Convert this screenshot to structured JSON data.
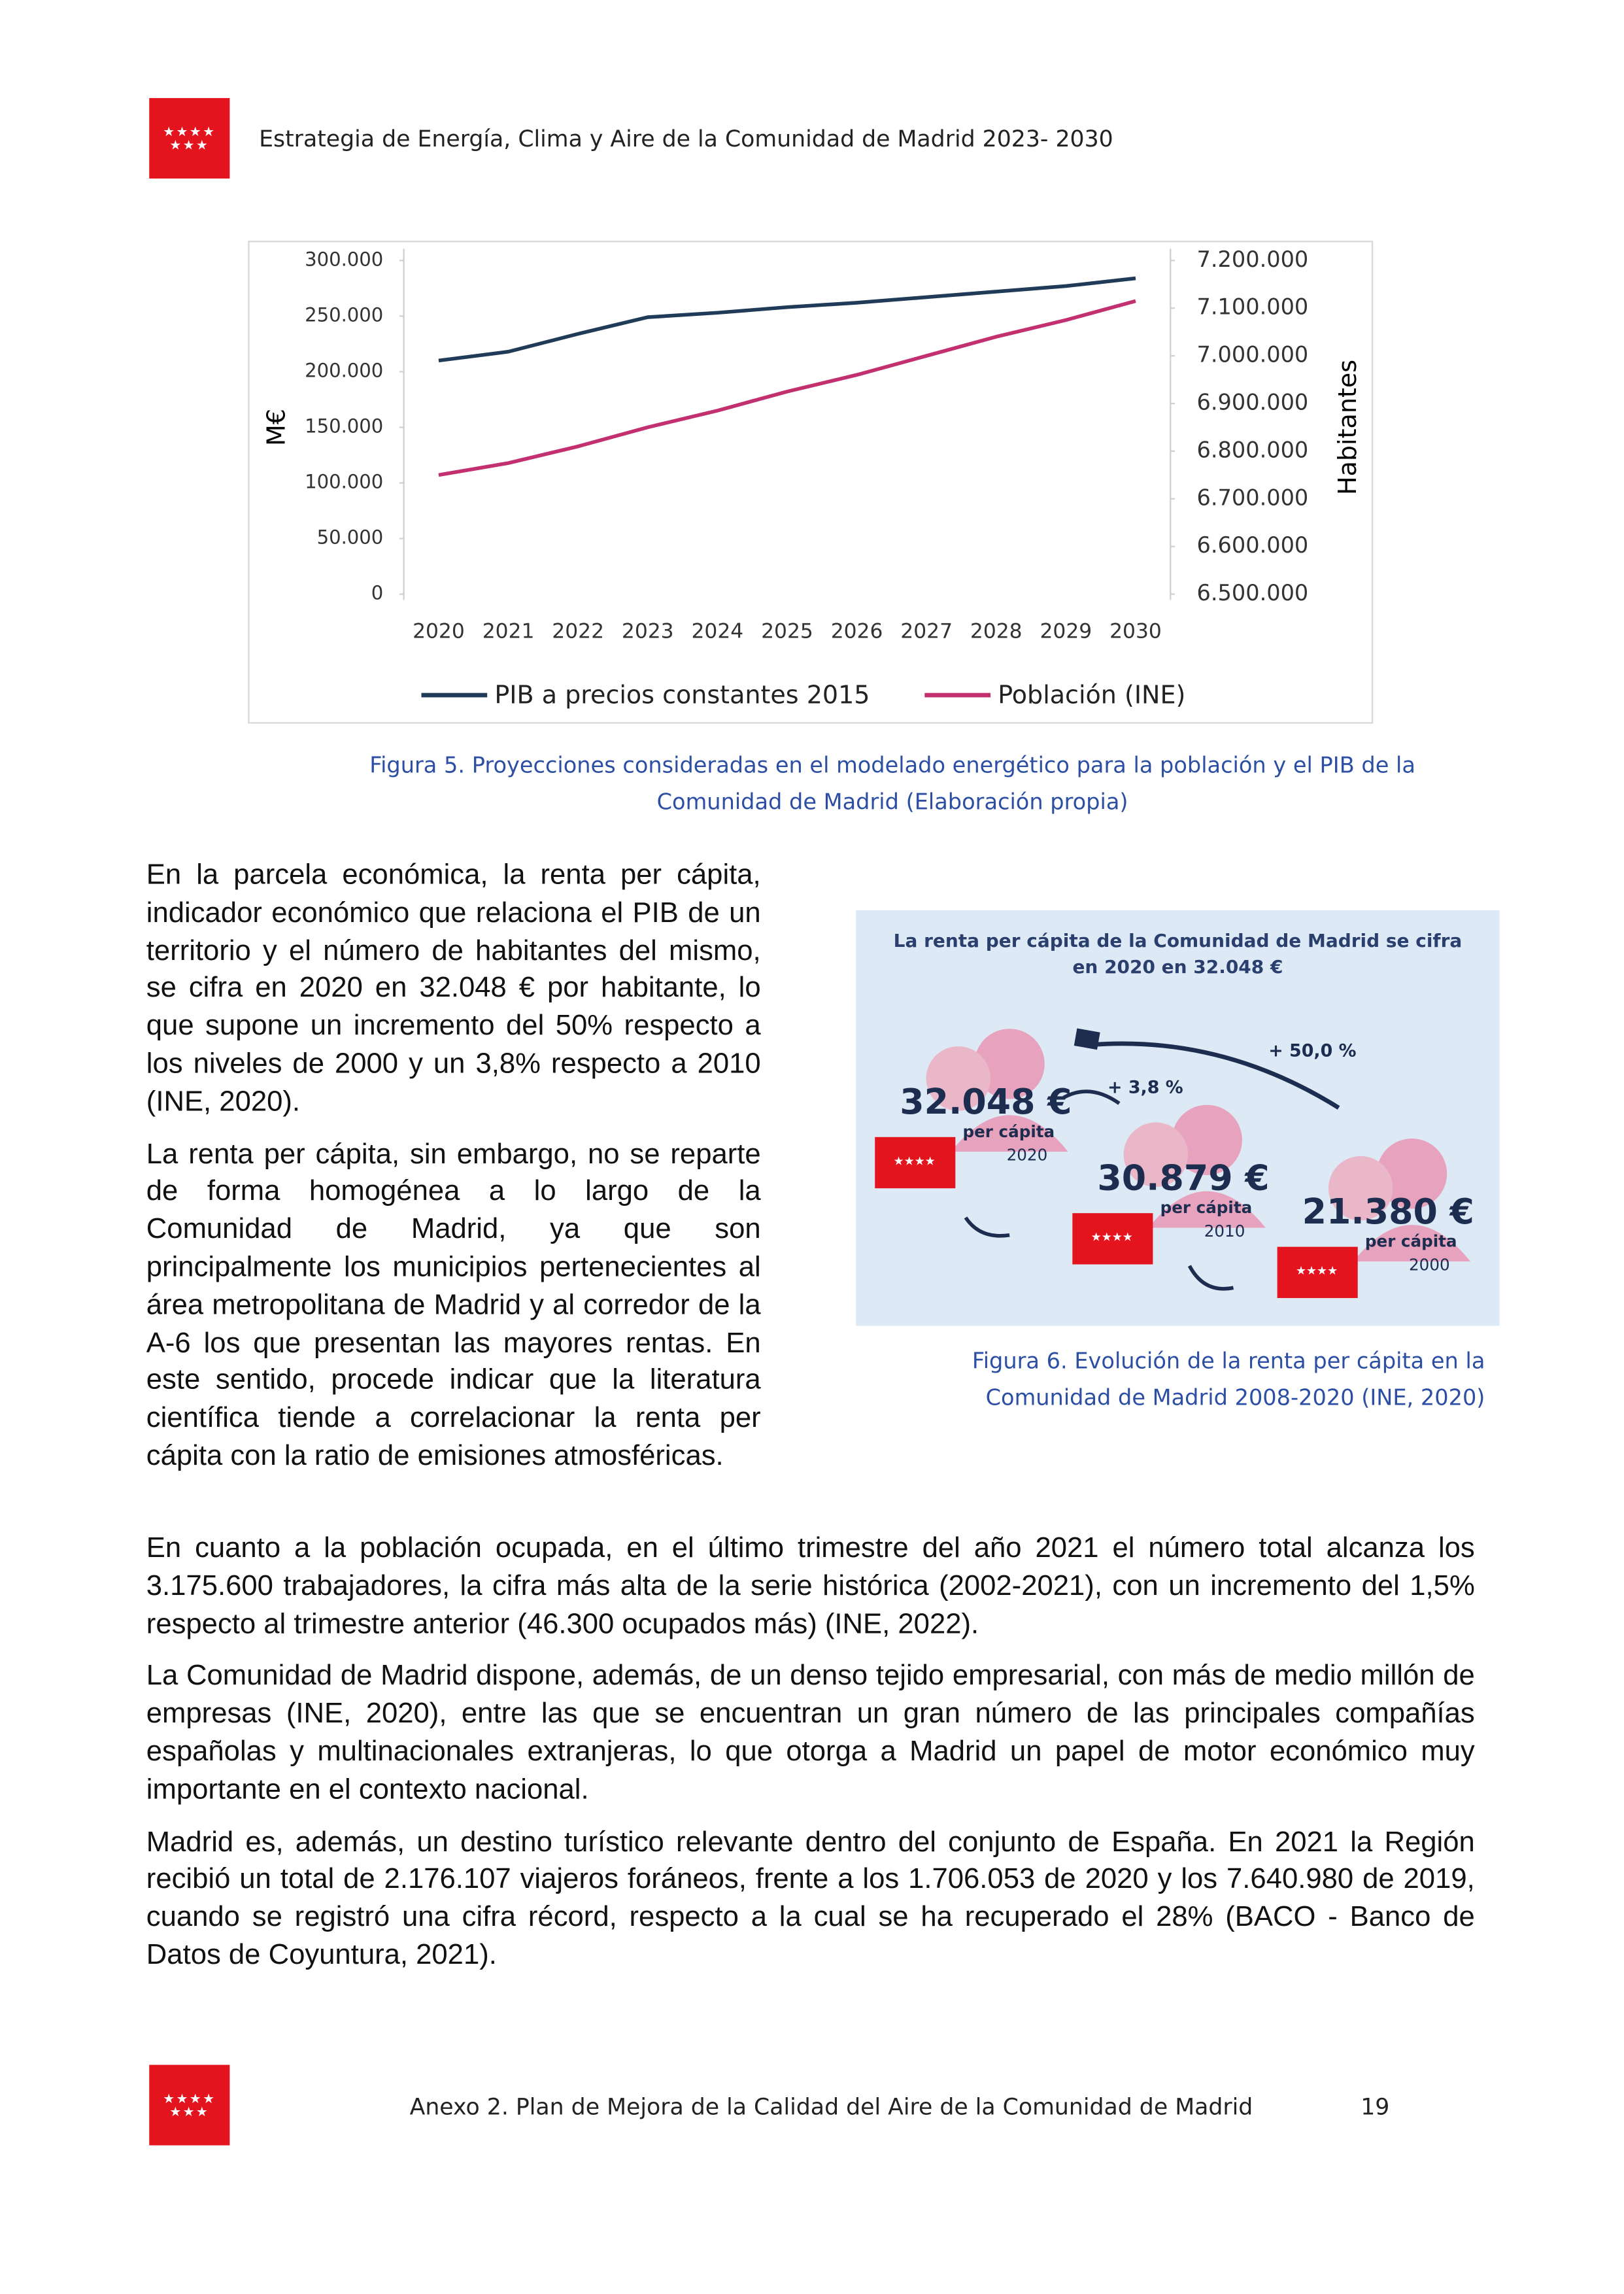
{
  "header": {
    "title": "Estrategia de Energía, Clima y Aire de la Comunidad de Madrid 2023- 2030"
  },
  "chart_data": {
    "type": "line",
    "categories": [
      "2020",
      "2021",
      "2022",
      "2023",
      "2024",
      "2025",
      "2026",
      "2027",
      "2028",
      "2029",
      "2030"
    ],
    "y_label": "M€",
    "y2_label": "Habitantes",
    "series": [
      {
        "name": "PIB a precios constantes 2015",
        "color": "#1f3b57",
        "values": [
          210000,
          218000,
          234000,
          249000,
          253000,
          258000,
          262000,
          267000,
          272000,
          277000,
          284000
        ]
      },
      {
        "name": "Población (INE)",
        "color": "#c2306f",
        "axis": "y2",
        "values": [
          6750000,
          6775000,
          6810000,
          6850000,
          6885000,
          6925000,
          6960000,
          7000000,
          7040000,
          7075000,
          7115000
        ]
      }
    ],
    "ylim": [
      0,
      300000
    ],
    "yticks": [
      0,
      {
        "value": 50000,
        "label": "50.000"
      },
      {
        "value": 100000,
        "label": "100.000"
      },
      {
        "value": 150000,
        "label": "150.000"
      },
      {
        "value": 200000,
        "label": "200.000"
      },
      {
        "value": 250000,
        "label": "250.000"
      },
      {
        "value": 300000,
        "label": "300.000"
      }
    ],
    "y2lim": [
      6500000,
      7200000
    ],
    "y2ticks": [
      {
        "value": 6500000,
        "label": "6.500.000"
      },
      {
        "value": 6600000,
        "label": "6.600.000"
      },
      {
        "value": 6700000,
        "label": "6.700.000"
      },
      {
        "value": 6800000,
        "label": "6.800.000"
      },
      {
        "value": 6900000,
        "label": "6.900.000"
      },
      {
        "value": 7000000,
        "label": "7.000.000"
      },
      {
        "value": 7100000,
        "label": "7.100.000"
      },
      {
        "value": 7200000,
        "label": "7.200.000"
      }
    ],
    "legend": "bottom",
    "grid": false
  },
  "figure5_caption": "Figura 5. Proyecciones consideradas en el modelado energético para la población y el PIB de la Comunidad de Madrid (Elaboración propia)",
  "left_paragraphs": [
    "En la parcela económica, la renta per cápita, indicador económico que relaciona el PIB de un territorio y el número de habitantes del mismo, se cifra en 2020 en 32.048 € por habitante, lo que supone un incremento del 50% respecto a los niveles de 2000 y un 3,8% respecto a 2010 (INE, 2020).",
    "La renta per cápita, sin embargo, no se reparte de forma homogénea a lo largo de la Comunidad de Madrid, ya que son principalmente los municipios pertenecientes al área metropolitana de Madrid y al corredor de la A-6 los que presentan las mayores rentas. En este sentido, procede indicar que la literatura científica tiende a correlacionar la renta per cápita con la ratio de emisiones atmosféricas."
  ],
  "infographic": {
    "title": "La renta per cápita de la Comunidad de Madrid se cifra en 2020 en 32.048 €",
    "changes": [
      "+ 50,0 %",
      "+ 3,8 %"
    ],
    "items": [
      {
        "value": "32.048 €",
        "unit": "per cápita",
        "year": "2020"
      },
      {
        "value": "30.879 €",
        "unit": "per cápita",
        "year": "2010"
      },
      {
        "value": "21.380 €",
        "unit": "per cápita",
        "year": "2000"
      }
    ]
  },
  "figure6_caption": "Figura 6. Evolución de la renta per cápita en la Comunidad de Madrid 2008-2020 (INE, 2020)",
  "paragraphs": [
    "En cuanto a la población ocupada, en el último trimestre del año 2021 el número total alcanza los 3.175.600 trabajadores, la cifra más alta de la serie histórica (2002-2021), con un incremento del 1,5% respecto al trimestre anterior (46.300 ocupados más) (INE, 2022).",
    "La Comunidad de Madrid dispone, además, de un denso tejido empresarial, con más de medio millón de empresas (INE, 2020), entre las que se encuentran un gran número de las principales compañías españolas y multinacionales extranjeras, lo que otorga a Madrid un papel de motor económico muy importante en el contexto nacional.",
    "Madrid es, además, un destino turístico relevante dentro del conjunto de España. En 2021 la Región recibió un total de 2.176.107 viajeros foráneos, frente a los 1.706.053 de 2020 y los 7.640.980 de 2019, cuando se registró una cifra récord, respecto a la cual se ha recuperado el 28% (BACO - Banco de Datos de Coyuntura, 2021)."
  ],
  "footer": {
    "text": "Anexo 2. Plan de Mejora de la Calidad del Aire de la Comunidad de Madrid",
    "page": "19"
  }
}
